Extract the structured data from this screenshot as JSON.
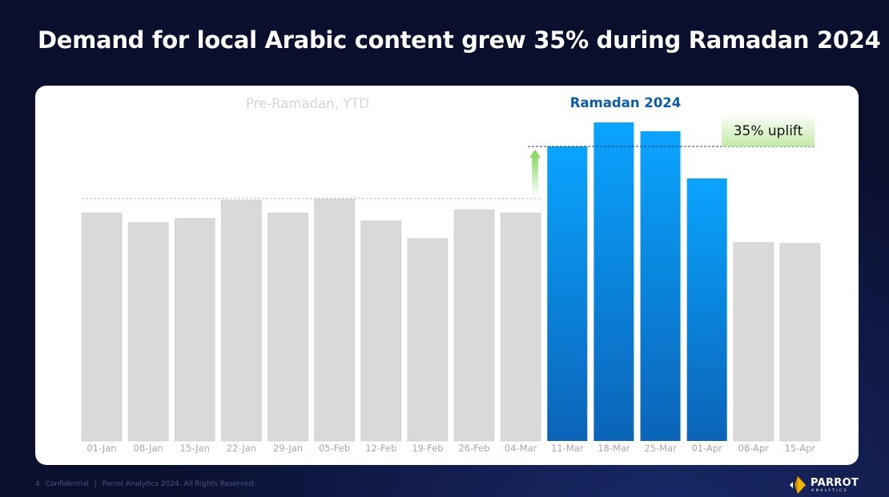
{
  "title": "Demand for local Arabic content grew 35% during Ramadan 2024",
  "footer": {
    "page_number": "4",
    "confidential": "Confidential",
    "separator": "|",
    "copyright": "Parrot Analytics 2024. All Rights Reserved."
  },
  "logo": {
    "name": "PARROT",
    "sub": "ANALYTICS",
    "icon": "parrot-logo-icon"
  },
  "chart_data": {
    "type": "bar",
    "categories": [
      "01-Jan",
      "08-Jan",
      "15-Jan",
      "22-Jan",
      "29-Jan",
      "05-Feb",
      "12-Feb",
      "19-Feb",
      "26-Feb",
      "04-Mar",
      "11-Mar",
      "18-Mar",
      "25-Mar",
      "01-Apr",
      "08-Apr",
      "15-Apr"
    ],
    "values": [
      285,
      273,
      278,
      301,
      285,
      302,
      275,
      253,
      289,
      285,
      368,
      398,
      387,
      328,
      248,
      247
    ],
    "highlighted": [
      false,
      false,
      false,
      false,
      false,
      false,
      false,
      false,
      false,
      false,
      true,
      true,
      true,
      true,
      false,
      false
    ],
    "ylim": [
      0,
      400
    ],
    "grid": false,
    "group_labels": {
      "pre": "Pre-Ramadan, YTD",
      "ramadan": "Ramadan 2024"
    },
    "reference_lines": {
      "pre_ramadan_peak": 302,
      "ramadan_level": 368
    },
    "annotation": "35% uplift",
    "colors": {
      "default_bar": "#d9d9d9",
      "ramadan_top": "#0aa4ff",
      "ramadan_bottom": "#0b64b8",
      "ramadan_label": "#0b5cad",
      "pre_label": "#d6d6d6",
      "tick": "#a8a8a8",
      "arrow": "#7dd24f",
      "uplift_box": "#c4eaa6"
    }
  }
}
